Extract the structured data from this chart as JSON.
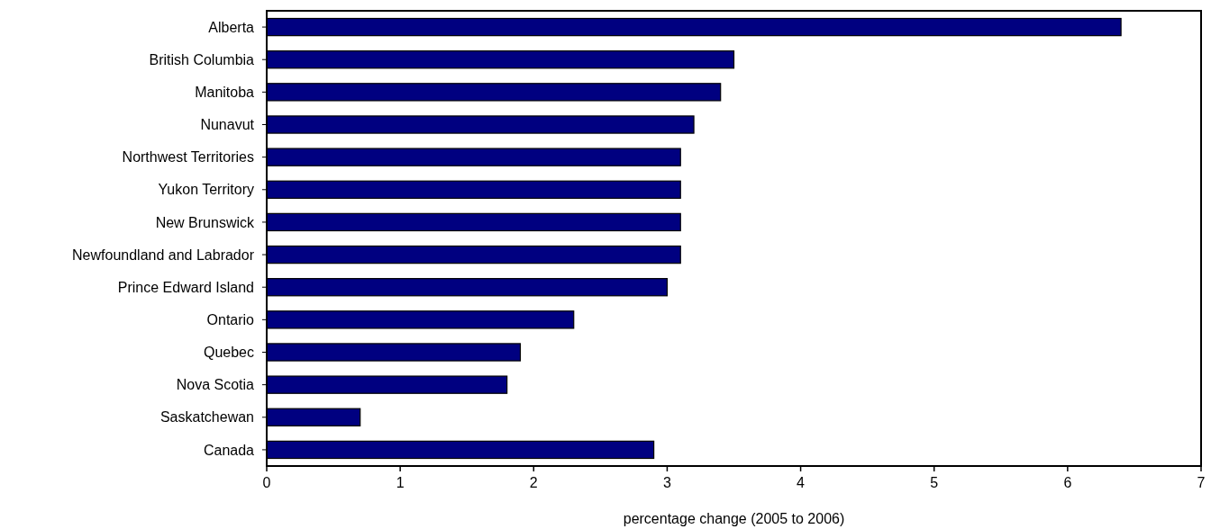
{
  "chart_data": {
    "type": "bar",
    "orientation": "horizontal",
    "xlabel": "percentage change (2005 to 2006)",
    "categories": [
      "Alberta",
      "British Columbia",
      "Manitoba",
      "Nunavut",
      "Northwest Territories",
      "Yukon Territory",
      "New Brunswick",
      "Newfoundland and Labrador",
      "Prince Edward Island",
      "Ontario",
      "Quebec",
      "Nova Scotia",
      "Saskatchewan",
      "Canada"
    ],
    "values": [
      6.4,
      3.5,
      3.4,
      3.2,
      3.1,
      3.1,
      3.1,
      3.1,
      3.0,
      2.3,
      1.9,
      1.8,
      0.7,
      2.9
    ],
    "color": "#000080",
    "xlim": [
      0,
      7
    ],
    "xticks": [
      0,
      1,
      2,
      3,
      4,
      5,
      6,
      7
    ],
    "grid": false
  }
}
